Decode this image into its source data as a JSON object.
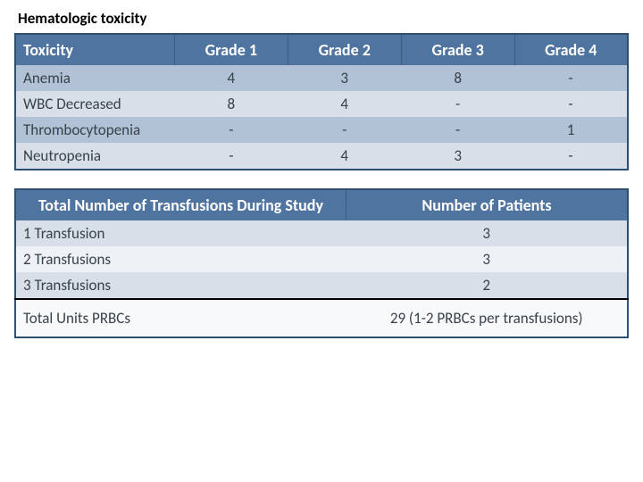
{
  "title": "Hematologic toxicity",
  "toxicityTable": {
    "columns": [
      "Toxicity",
      "Grade 1",
      "Grade 2",
      "Grade 3",
      "Grade 4"
    ],
    "rows": [
      {
        "label": "Anemia",
        "g1": "4",
        "g2": "3",
        "g3": "8",
        "g4": "-"
      },
      {
        "label": "WBC Decreased",
        "g1": "8",
        "g2": "4",
        "g3": "-",
        "g4": "-"
      },
      {
        "label": "Thrombocytopenia",
        "g1": "-",
        "g2": "-",
        "g3": "-",
        "g4": "1"
      },
      {
        "label": "Neutropenia",
        "g1": "-",
        "g2": "4",
        "g3": "3",
        "g4": "-"
      }
    ]
  },
  "transfusionTable": {
    "columns": [
      "Total Number of Transfusions During Study",
      "Number of Patients"
    ],
    "rows": [
      {
        "label": "1 Transfusion",
        "value": "3"
      },
      {
        "label": "2 Transfusions",
        "value": "3"
      },
      {
        "label": "3 Transfusions",
        "value": "2"
      }
    ],
    "totals": {
      "label": "Total Units PRBCs",
      "value": "29 (1-2 PRBCs per transfusions)"
    }
  },
  "colors": {
    "header_bg": "#4f74a0",
    "header_fg": "#ffffff",
    "row_odd": "#b1c1d6",
    "row_even": "#d9dfe8",
    "border": "#2f4f6f",
    "text": "#38424a"
  }
}
